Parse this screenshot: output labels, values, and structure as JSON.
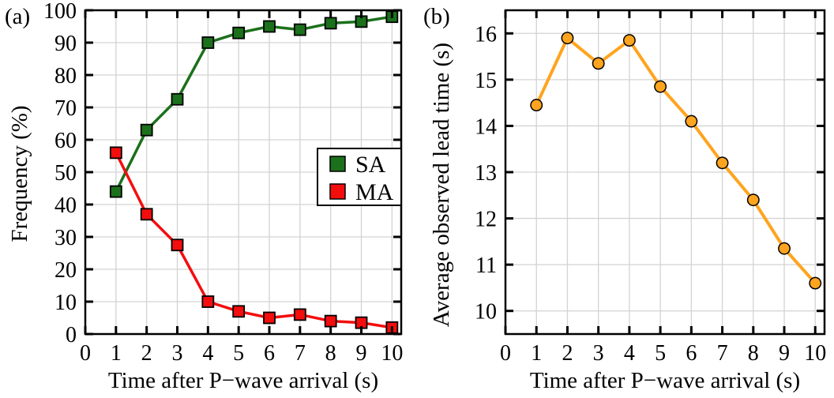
{
  "colors": {
    "background": "#ffffff",
    "axis": "#000000",
    "grid": "#d3d3d3",
    "marker_edge": "#000000",
    "sa_green": "#1b701b",
    "ma_red": "#f40d0d",
    "lead_orange": "#ffa41e"
  },
  "chart_data": [
    {
      "id": "a",
      "type": "line",
      "panel_label": "(a)",
      "xlabel": "Time after P−wave arrival (s)",
      "ylabel": "Frequency (%)",
      "x": [
        1,
        2,
        3,
        4,
        5,
        6,
        7,
        8,
        9,
        10
      ],
      "series": [
        {
          "name": "SA",
          "marker": "square",
          "color": "#1b701b",
          "values": [
            44,
            63,
            72.5,
            90,
            93,
            95,
            94,
            96,
            96.5,
            98
          ]
        },
        {
          "name": "MA",
          "marker": "square",
          "color": "#f40d0d",
          "values": [
            56,
            37,
            27.5,
            10,
            7,
            5,
            6,
            4,
            3.5,
            2
          ]
        }
      ],
      "xlim": [
        0,
        10.3
      ],
      "ylim": [
        0,
        100
      ],
      "xticks": [
        0,
        1,
        2,
        3,
        4,
        5,
        6,
        7,
        8,
        9,
        10
      ],
      "yticks": [
        0,
        10,
        20,
        30,
        40,
        50,
        60,
        70,
        80,
        90,
        100
      ],
      "grid": true,
      "legend": {
        "position": "inside-right-middle",
        "entries": [
          "SA",
          "MA"
        ]
      }
    },
    {
      "id": "b",
      "type": "line",
      "panel_label": "(b)",
      "xlabel": "Time after P−wave arrival (s)",
      "ylabel": "Average observed lead time (s)",
      "x": [
        1,
        2,
        3,
        4,
        5,
        6,
        7,
        8,
        9,
        10
      ],
      "series": [
        {
          "name": "Average observed lead time",
          "marker": "circle",
          "color": "#ffa41e",
          "values": [
            14.45,
            15.9,
            15.35,
            15.85,
            14.85,
            14.1,
            13.2,
            12.4,
            11.35,
            10.6
          ]
        }
      ],
      "xlim": [
        0,
        10.3
      ],
      "ylim": [
        9.5,
        16.5
      ],
      "xticks": [
        0,
        1,
        2,
        3,
        4,
        5,
        6,
        7,
        8,
        9,
        10
      ],
      "yticks": [
        10,
        11,
        12,
        13,
        14,
        15,
        16
      ],
      "grid": true,
      "legend": null
    }
  ]
}
